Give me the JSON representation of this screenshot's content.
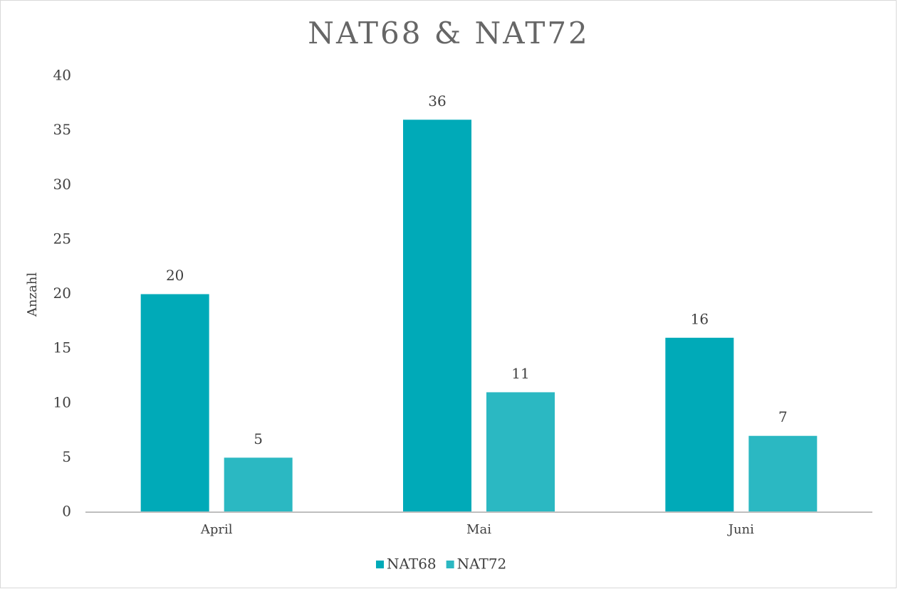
{
  "chart_data": {
    "type": "bar",
    "title": "NAT68 & NAT72",
    "ylabel": "Anzahl",
    "categories": [
      "April",
      "Mai",
      "Juni"
    ],
    "series": [
      {
        "name": "NAT68",
        "color": "#00aab8",
        "values": [
          20,
          36,
          16
        ]
      },
      {
        "name": "NAT72",
        "color": "#2bb8c2",
        "values": [
          5,
          11,
          7
        ]
      }
    ],
    "ylim": [
      0,
      40
    ],
    "yticks": [
      0,
      5,
      10,
      15,
      20,
      25,
      30,
      35,
      40
    ],
    "grid": false,
    "legend": "bottom",
    "data_labels": true
  }
}
